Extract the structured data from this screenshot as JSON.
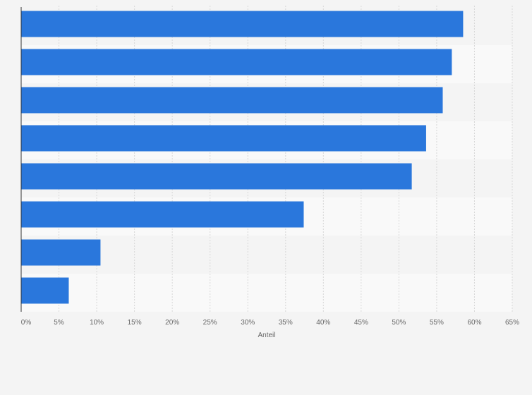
{
  "chart_data": {
    "type": "bar",
    "orientation": "horizontal",
    "title": "",
    "xlabel": "Anteil",
    "ylabel": "",
    "categories": [
      "",
      "",
      "",
      "",
      "",
      "",
      "",
      ""
    ],
    "values": [
      58.5,
      57.0,
      55.8,
      53.6,
      51.7,
      37.4,
      10.5,
      6.3
    ],
    "xlim": [
      0,
      65
    ],
    "x_ticks": [
      0,
      5,
      10,
      15,
      20,
      25,
      30,
      35,
      40,
      45,
      50,
      55,
      60,
      65
    ],
    "tick_labels": [
      "0%",
      "5%",
      "10%",
      "15%",
      "20%",
      "25%",
      "30%",
      "35%",
      "40%",
      "45%",
      "50%",
      "55%",
      "60%",
      "65%"
    ],
    "bar_color": "#2a77dc",
    "grid": true,
    "legend": "none"
  }
}
